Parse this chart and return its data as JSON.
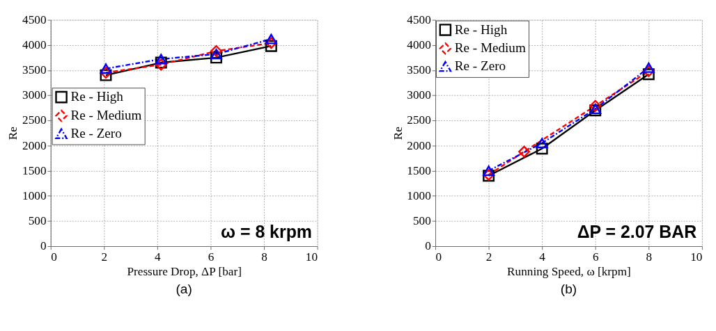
{
  "chart_data": [
    {
      "type": "line",
      "title": "(a)",
      "xlabel": "Pressure Drop, ΔP [bar]",
      "ylabel": "Re",
      "xlim": [
        0,
        10
      ],
      "xticks": [
        0,
        2,
        4,
        6,
        8,
        10
      ],
      "ylim": [
        0,
        4500
      ],
      "yticks": [
        0,
        500,
        1000,
        1500,
        2000,
        2500,
        3000,
        3500,
        4000,
        4500
      ],
      "grid": true,
      "legend": "left",
      "annotations": [
        "ω = 8 krpm"
      ],
      "series": [
        {
          "name": "Re - High",
          "color": "#000000",
          "marker": "square",
          "line_style": "solid",
          "x": [
            2.07,
            4.14,
            6.21,
            8.27
          ],
          "values": [
            3400,
            3650,
            3750,
            3980
          ]
        },
        {
          "name": "Re - Medium",
          "color": "#ff0000",
          "marker": "diamond",
          "line_style": "dashed",
          "x": [
            2.07,
            4.14,
            6.21,
            8.27
          ],
          "values": [
            3450,
            3610,
            3880,
            4040
          ]
        },
        {
          "name": "Re - Zero",
          "color": "#0000ff",
          "marker": "triangle",
          "line_style": "dotted",
          "x": [
            2.07,
            4.14,
            6.21,
            8.27
          ],
          "values": [
            3530,
            3720,
            3820,
            4120
          ]
        }
      ]
    },
    {
      "type": "line",
      "title": "(b)",
      "xlabel": "Running Speed, ω [krpm]",
      "ylabel": "Re",
      "xlim": [
        0,
        10
      ],
      "xticks": [
        0,
        2,
        4,
        6,
        8,
        10
      ],
      "ylim": [
        0,
        4500
      ],
      "yticks": [
        0,
        500,
        1000,
        1500,
        2000,
        2500,
        3000,
        3500,
        4000,
        4500
      ],
      "grid": true,
      "legend": "top left",
      "annotations": [
        "ΔP = 2.07 BAR"
      ],
      "series": [
        {
          "name": "Re - High",
          "color": "#000000",
          "marker": "square",
          "line_style": "solid",
          "x": [
            2,
            4,
            6,
            8
          ],
          "values": [
            1400,
            1940,
            2700,
            3420
          ]
        },
        {
          "name": "Re - Medium",
          "color": "#ff0000",
          "marker": "diamond",
          "line_style": "dashed",
          "x": [
            2,
            3.33,
            6,
            8
          ],
          "values": [
            1420,
            1880,
            2790,
            3480
          ]
        },
        {
          "name": "Re - Zero",
          "color": "#0000ff",
          "marker": "triangle",
          "line_style": "dotted",
          "x": [
            2,
            4,
            6,
            8
          ],
          "values": [
            1500,
            2050,
            2730,
            3550
          ]
        }
      ]
    }
  ]
}
